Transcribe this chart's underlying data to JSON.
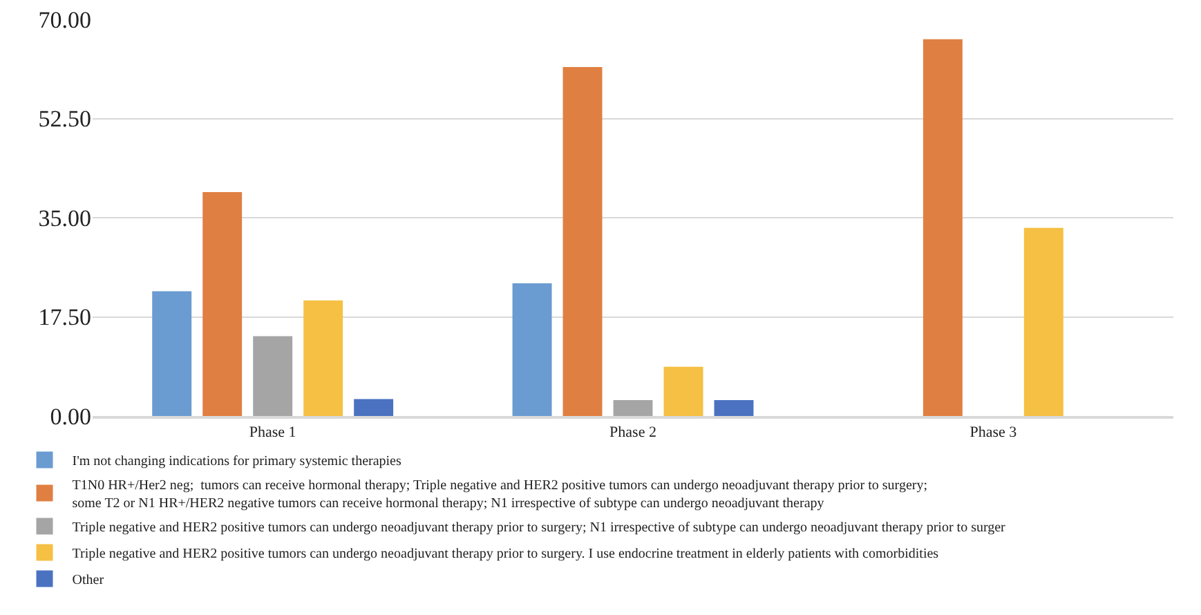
{
  "chart_data": {
    "type": "bar",
    "categories": [
      "Phase 1",
      "Phase 2",
      "Phase 3"
    ],
    "series": [
      {
        "name": "I'm not changing indications for primary systemic therapies",
        "color": "#6a9bd1",
        "values": [
          22.0,
          23.4,
          0
        ]
      },
      {
        "name": "T1N0 HR+/Her2 neg;  tumors can receive hormonal therapy; Triple negative and HER2 positive tumors can undergo neoadjuvant therapy prior to surgery; some T2 or N1 HR+/HER2 negative tumors can receive hormonal therapy; N1 irrespective of subtype can undergo neoadjuvant therapy",
        "color": "#e07f42",
        "values": [
          39.5,
          61.6,
          66.5
        ]
      },
      {
        "name": "Triple negative and HER2 positive tumors can undergo neoadjuvant therapy prior to surgery; N1 irrespective of subtype can undergo neoadjuvant therapy prior to surger",
        "color": "#a5a5a5",
        "values": [
          14.1,
          2.8,
          0
        ]
      },
      {
        "name": "Triple negative and HER2 positive tumors can undergo neoadjuvant therapy prior to surgery. I use endocrine treatment in elderly patients with comorbidities",
        "color": "#f5c043",
        "values": [
          20.4,
          8.7,
          33.2
        ]
      },
      {
        "name": "Other",
        "color": "#4a72c0",
        "values": [
          3.0,
          2.8,
          0
        ]
      }
    ],
    "ylim": [
      0,
      70
    ],
    "yticks": [
      {
        "value": 0,
        "label": "0.00"
      },
      {
        "value": 17.5,
        "label": "17.50"
      },
      {
        "value": 35,
        "label": "35.00"
      },
      {
        "value": 52.5,
        "label": "52.50"
      },
      {
        "value": 70,
        "label": "70.00"
      }
    ],
    "grid": "y",
    "legend": "bottom"
  }
}
